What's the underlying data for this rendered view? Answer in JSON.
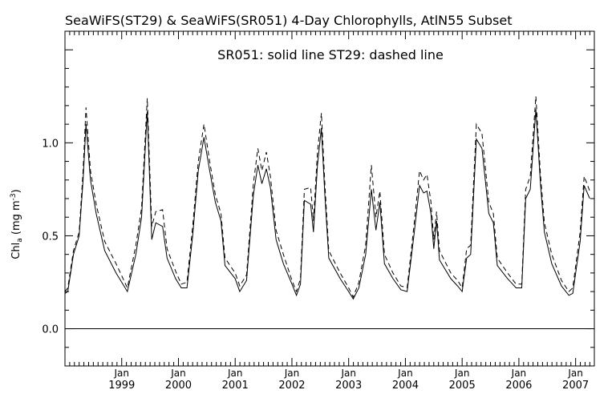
{
  "chart_data": {
    "type": "line",
    "title": "SeaWiFS(ST29) & SeaWiFS(SR051) 4-Day Chlorophylls, AtlN55 Subset",
    "subtitle": "SR051: solid line    ST29: dashed line",
    "ylabel_main": "Chl",
    "ylabel_sub": "a",
    "ylabel_unit_start": " (mg m",
    "ylabel_unit_exp": "-3",
    "ylabel_unit_end": ")",
    "xlabel": "",
    "ylim": [
      -0.2,
      1.6
    ],
    "xlim": [
      1998.0,
      2007.33
    ],
    "yticks": [
      0.0,
      0.5,
      1.0
    ],
    "ytick_labels": [
      "0.0",
      "0.5",
      "1.0"
    ],
    "xticks": [
      {
        "x": 1999.0,
        "top": "Jan",
        "bottom": "1999"
      },
      {
        "x": 2000.0,
        "top": "Jan",
        "bottom": "2000"
      },
      {
        "x": 2001.0,
        "top": "Jan",
        "bottom": "2001"
      },
      {
        "x": 2002.0,
        "top": "Jan",
        "bottom": "2002"
      },
      {
        "x": 2003.0,
        "top": "Jan",
        "bottom": "2003"
      },
      {
        "x": 2004.0,
        "top": "Jan",
        "bottom": "2004"
      },
      {
        "x": 2005.0,
        "top": "Jan",
        "bottom": "2005"
      },
      {
        "x": 2006.0,
        "top": "Jan",
        "bottom": "2006"
      },
      {
        "x": 2007.0,
        "top": "Jan",
        "bottom": "2007"
      }
    ],
    "zero_line": 0.0,
    "series": [
      {
        "name": "SR051",
        "style": "solid",
        "color": "#000000",
        "points": [
          [
            1998.0,
            0.19
          ],
          [
            1998.05,
            0.2
          ],
          [
            1998.15,
            0.4
          ],
          [
            1998.25,
            0.5
          ],
          [
            1998.32,
            0.8
          ],
          [
            1998.37,
            1.1
          ],
          [
            1998.45,
            0.8
          ],
          [
            1998.55,
            0.62
          ],
          [
            1998.7,
            0.42
          ],
          [
            1998.9,
            0.3
          ],
          [
            1999.1,
            0.2
          ],
          [
            1999.25,
            0.4
          ],
          [
            1999.35,
            0.6
          ],
          [
            1999.45,
            1.17
          ],
          [
            1999.53,
            0.48
          ],
          [
            1999.6,
            0.57
          ],
          [
            1999.72,
            0.55
          ],
          [
            1999.8,
            0.38
          ],
          [
            1999.95,
            0.27
          ],
          [
            2000.05,
            0.22
          ],
          [
            2000.15,
            0.22
          ],
          [
            2000.25,
            0.5
          ],
          [
            2000.35,
            0.85
          ],
          [
            2000.45,
            1.03
          ],
          [
            2000.55,
            0.85
          ],
          [
            2000.65,
            0.68
          ],
          [
            2000.75,
            0.58
          ],
          [
            2000.82,
            0.34
          ],
          [
            2001.0,
            0.27
          ],
          [
            2001.08,
            0.2
          ],
          [
            2001.2,
            0.26
          ],
          [
            2001.32,
            0.72
          ],
          [
            2001.4,
            0.88
          ],
          [
            2001.47,
            0.78
          ],
          [
            2001.55,
            0.86
          ],
          [
            2001.62,
            0.76
          ],
          [
            2001.72,
            0.48
          ],
          [
            2001.85,
            0.35
          ],
          [
            2002.0,
            0.24
          ],
          [
            2002.08,
            0.18
          ],
          [
            2002.15,
            0.24
          ],
          [
            2002.22,
            0.69
          ],
          [
            2002.33,
            0.67
          ],
          [
            2002.38,
            0.52
          ],
          [
            2002.45,
            0.88
          ],
          [
            2002.52,
            1.08
          ],
          [
            2002.58,
            0.72
          ],
          [
            2002.65,
            0.38
          ],
          [
            2002.85,
            0.27
          ],
          [
            2003.0,
            0.2
          ],
          [
            2003.08,
            0.16
          ],
          [
            2003.18,
            0.22
          ],
          [
            2003.3,
            0.4
          ],
          [
            2003.4,
            0.75
          ],
          [
            2003.48,
            0.53
          ],
          [
            2003.55,
            0.68
          ],
          [
            2003.63,
            0.35
          ],
          [
            2003.78,
            0.27
          ],
          [
            2003.92,
            0.21
          ],
          [
            2004.03,
            0.2
          ],
          [
            2004.15,
            0.5
          ],
          [
            2004.25,
            0.77
          ],
          [
            2004.32,
            0.73
          ],
          [
            2004.38,
            0.74
          ],
          [
            2004.45,
            0.62
          ],
          [
            2004.5,
            0.43
          ],
          [
            2004.55,
            0.58
          ],
          [
            2004.6,
            0.37
          ],
          [
            2004.8,
            0.27
          ],
          [
            2004.92,
            0.23
          ],
          [
            2005.0,
            0.2
          ],
          [
            2005.08,
            0.38
          ],
          [
            2005.15,
            0.4
          ],
          [
            2005.25,
            1.02
          ],
          [
            2005.35,
            0.97
          ],
          [
            2005.47,
            0.62
          ],
          [
            2005.55,
            0.57
          ],
          [
            2005.62,
            0.34
          ],
          [
            2005.8,
            0.27
          ],
          [
            2005.95,
            0.22
          ],
          [
            2006.05,
            0.22
          ],
          [
            2006.12,
            0.7
          ],
          [
            2006.2,
            0.75
          ],
          [
            2006.3,
            1.18
          ],
          [
            2006.38,
            0.78
          ],
          [
            2006.45,
            0.52
          ],
          [
            2006.58,
            0.35
          ],
          [
            2006.75,
            0.23
          ],
          [
            2006.88,
            0.18
          ],
          [
            2006.95,
            0.19
          ],
          [
            2007.08,
            0.47
          ],
          [
            2007.15,
            0.77
          ],
          [
            2007.25,
            0.7
          ]
        ]
      },
      {
        "name": "ST29",
        "style": "dashed",
        "color": "#000000",
        "points": [
          [
            1998.0,
            0.2
          ],
          [
            1998.05,
            0.22
          ],
          [
            1998.15,
            0.42
          ],
          [
            1998.25,
            0.52
          ],
          [
            1998.32,
            0.85
          ],
          [
            1998.37,
            1.19
          ],
          [
            1998.45,
            0.85
          ],
          [
            1998.55,
            0.67
          ],
          [
            1998.7,
            0.47
          ],
          [
            1998.9,
            0.35
          ],
          [
            1999.1,
            0.22
          ],
          [
            1999.25,
            0.45
          ],
          [
            1999.35,
            0.65
          ],
          [
            1999.45,
            1.24
          ],
          [
            1999.53,
            0.55
          ],
          [
            1999.6,
            0.63
          ],
          [
            1999.72,
            0.64
          ],
          [
            1999.8,
            0.43
          ],
          [
            1999.95,
            0.31
          ],
          [
            2000.05,
            0.24
          ],
          [
            2000.15,
            0.25
          ],
          [
            2000.25,
            0.55
          ],
          [
            2000.35,
            0.9
          ],
          [
            2000.45,
            1.1
          ],
          [
            2000.55,
            0.9
          ],
          [
            2000.65,
            0.72
          ],
          [
            2000.75,
            0.62
          ],
          [
            2000.82,
            0.38
          ],
          [
            2001.0,
            0.3
          ],
          [
            2001.08,
            0.23
          ],
          [
            2001.2,
            0.29
          ],
          [
            2001.32,
            0.78
          ],
          [
            2001.4,
            0.97
          ],
          [
            2001.47,
            0.85
          ],
          [
            2001.55,
            0.95
          ],
          [
            2001.62,
            0.82
          ],
          [
            2001.72,
            0.53
          ],
          [
            2001.85,
            0.4
          ],
          [
            2002.0,
            0.26
          ],
          [
            2002.08,
            0.2
          ],
          [
            2002.15,
            0.27
          ],
          [
            2002.22,
            0.75
          ],
          [
            2002.33,
            0.76
          ],
          [
            2002.38,
            0.58
          ],
          [
            2002.45,
            0.95
          ],
          [
            2002.52,
            1.16
          ],
          [
            2002.58,
            0.78
          ],
          [
            2002.65,
            0.42
          ],
          [
            2002.85,
            0.3
          ],
          [
            2003.0,
            0.22
          ],
          [
            2003.08,
            0.17
          ],
          [
            2003.18,
            0.25
          ],
          [
            2003.3,
            0.45
          ],
          [
            2003.4,
            0.88
          ],
          [
            2003.48,
            0.6
          ],
          [
            2003.55,
            0.74
          ],
          [
            2003.63,
            0.4
          ],
          [
            2003.78,
            0.3
          ],
          [
            2003.92,
            0.23
          ],
          [
            2004.03,
            0.22
          ],
          [
            2004.15,
            0.55
          ],
          [
            2004.25,
            0.85
          ],
          [
            2004.32,
            0.8
          ],
          [
            2004.38,
            0.83
          ],
          [
            2004.45,
            0.68
          ],
          [
            2004.5,
            0.48
          ],
          [
            2004.55,
            0.63
          ],
          [
            2004.6,
            0.42
          ],
          [
            2004.8,
            0.3
          ],
          [
            2004.92,
            0.26
          ],
          [
            2005.0,
            0.22
          ],
          [
            2005.08,
            0.43
          ],
          [
            2005.15,
            0.45
          ],
          [
            2005.25,
            1.1
          ],
          [
            2005.35,
            1.05
          ],
          [
            2005.47,
            0.68
          ],
          [
            2005.55,
            0.62
          ],
          [
            2005.62,
            0.38
          ],
          [
            2005.8,
            0.3
          ],
          [
            2005.95,
            0.24
          ],
          [
            2006.05,
            0.24
          ],
          [
            2006.12,
            0.75
          ],
          [
            2006.2,
            0.82
          ],
          [
            2006.3,
            1.25
          ],
          [
            2006.38,
            0.83
          ],
          [
            2006.45,
            0.57
          ],
          [
            2006.58,
            0.4
          ],
          [
            2006.75,
            0.26
          ],
          [
            2006.88,
            0.2
          ],
          [
            2006.95,
            0.22
          ],
          [
            2007.08,
            0.52
          ],
          [
            2007.15,
            0.82
          ],
          [
            2007.25,
            0.74
          ]
        ]
      }
    ],
    "grid": false,
    "legend": "top-center text"
  }
}
